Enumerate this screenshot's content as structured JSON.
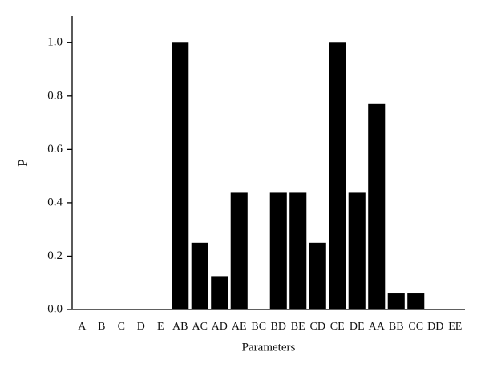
{
  "chart_data": {
    "type": "bar",
    "x_label": "Parameters",
    "y_label": "P",
    "categories": [
      "A",
      "B",
      "C",
      "D",
      "E",
      "AB",
      "AC",
      "AD",
      "AE",
      "BC",
      "BD",
      "BE",
      "CD",
      "CE",
      "DE",
      "AA",
      "BB",
      "CC",
      "DD",
      "EE"
    ],
    "values": [
      0,
      0,
      0,
      0,
      0,
      1.0,
      0.25,
      0.125,
      0.4375,
      0.003,
      0.4375,
      0.4375,
      0.25,
      1.0,
      0.4375,
      0.77,
      0.06,
      0.06,
      0,
      0
    ],
    "color": "#000000",
    "ylim": [
      0,
      1.1
    ],
    "yticks": [
      {
        "value": 0,
        "label": "0.0"
      },
      {
        "value": 0.2,
        "label": "0.2"
      },
      {
        "value": 0.4,
        "label": "0.4"
      },
      {
        "value": 0.6,
        "label": "0.6"
      },
      {
        "value": 0.8,
        "label": "0.8"
      },
      {
        "value": 1.0,
        "label": "1.0"
      }
    ],
    "grid": false
  }
}
